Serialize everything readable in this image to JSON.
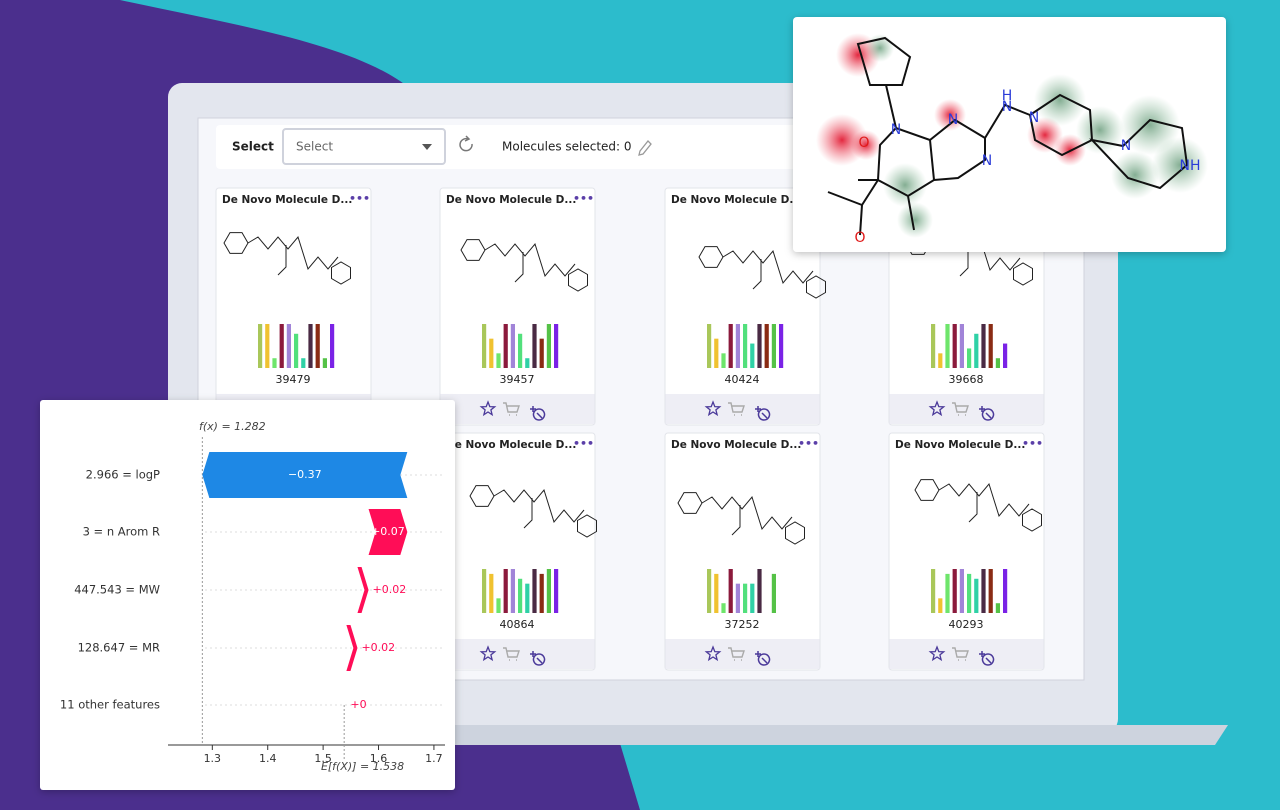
{
  "toolbar": {
    "label": "Select",
    "dropdown": "Select",
    "selected_text": "Molecules selected: 0"
  },
  "cards": [
    {
      "title": "De Novo Molecule D...",
      "menu": "•••",
      "id": "39479",
      "bars": [
        9,
        9,
        2,
        9,
        9,
        7,
        2,
        9,
        9,
        2,
        9
      ]
    },
    {
      "title": "De Novo Molecule D...",
      "menu": "•••",
      "id": "39457",
      "bars": [
        9,
        6,
        3,
        9,
        9,
        7,
        2,
        9,
        6,
        9,
        9
      ]
    },
    {
      "title": "De Novo Molecule D...",
      "menu": "•••",
      "id": "40424",
      "bars": [
        9,
        6,
        3,
        9,
        9,
        9,
        5,
        9,
        9,
        9,
        9
      ]
    },
    {
      "title": "De Novo Molecule D...",
      "menu": "•••",
      "id": "39668",
      "bars": [
        9,
        3,
        9,
        9,
        9,
        4,
        7,
        9,
        9,
        2,
        5
      ]
    },
    {
      "title": "De Novo Molecule D...",
      "menu": "•••",
      "id": "40864",
      "bars": [
        9,
        8,
        3,
        9,
        9,
        7,
        6,
        9,
        8,
        9,
        9
      ]
    },
    {
      "title": "De Novo Molecule D...",
      "menu": "•••",
      "id": "37252",
      "bars": [
        9,
        8,
        2,
        9,
        6,
        6,
        6,
        9,
        0,
        8,
        0
      ]
    },
    {
      "title": "De Novo Molecule D...",
      "menu": "•••",
      "id": "40293",
      "bars": [
        9,
        3,
        8,
        9,
        9,
        8,
        7,
        9,
        9,
        2,
        9
      ]
    }
  ],
  "bar_colors": [
    "#a9c75a",
    "#f0c230",
    "#6ee56b",
    "#8b1a3c",
    "#a184d8",
    "#52e07c",
    "#2fd1a6",
    "#4a2a44",
    "#8a2b14",
    "#55c247",
    "#7a22e6"
  ],
  "popup": {
    "atoms": [
      "N",
      "N",
      "N",
      "H",
      "N",
      "N",
      "N",
      "O",
      "O",
      "NH"
    ]
  },
  "chart_data": {
    "type": "waterfall",
    "labels": [
      "2.966 = logP",
      "3 = n Arom R",
      "447.543 = MW",
      "128.647 = MR",
      "11 other features"
    ],
    "values": [
      -0.37,
      0.07,
      0.02,
      0.02,
      0.004
    ],
    "value_labels": [
      "−0.37",
      "+0.07",
      "+0.02",
      "+0.02",
      "+0"
    ],
    "base": 1.538,
    "annotations": [
      {
        "text": "f(x) = 1.282",
        "value": 1.282
      },
      {
        "text": "E[f(X)] = 1.538",
        "value": 1.538
      }
    ],
    "xlim": [
      1.22,
      1.72
    ],
    "xticks": [
      1.3,
      1.4,
      1.5,
      1.6,
      1.7
    ],
    "colors": {
      "positive": "#ff0d57",
      "negative": "#1e88e5"
    }
  }
}
